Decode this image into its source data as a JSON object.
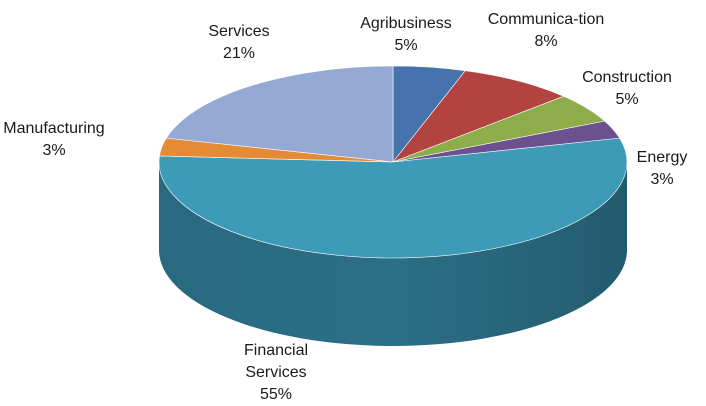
{
  "chart_data": {
    "type": "pie",
    "title": "",
    "style": "3d-exploded-none",
    "slices": [
      {
        "label": [
          "Agribusiness"
        ],
        "value": 5,
        "value_label": "5%",
        "color": "#4673ad",
        "side_color": "#2f5484"
      },
      {
        "label": [
          "Communica-tion"
        ],
        "value": 8,
        "value_label": "8%",
        "color": "#b34340",
        "side_color": "#86302e"
      },
      {
        "label": [
          "Construction"
        ],
        "value": 5,
        "value_label": "5%",
        "color": "#8dad4b",
        "side_color": "#657d34"
      },
      {
        "label": [
          "Energy"
        ],
        "value": 3,
        "value_label": "3%",
        "color": "#6b5190",
        "side_color": "#4b3866"
      },
      {
        "label": [
          "Financial",
          "Services"
        ],
        "value": 55,
        "value_label": "55%",
        "color": "#3e9bb8",
        "side_color": "#2b6f86"
      },
      {
        "label": [
          "Manufacturing"
        ],
        "value": 3,
        "value_label": "3%",
        "color": "#e58a35",
        "side_color": "#a96224"
      },
      {
        "label": [
          "Services"
        ],
        "value": 21,
        "value_label": "21%",
        "color": "#94a9d3",
        "side_color": "#6c80a8"
      }
    ]
  }
}
